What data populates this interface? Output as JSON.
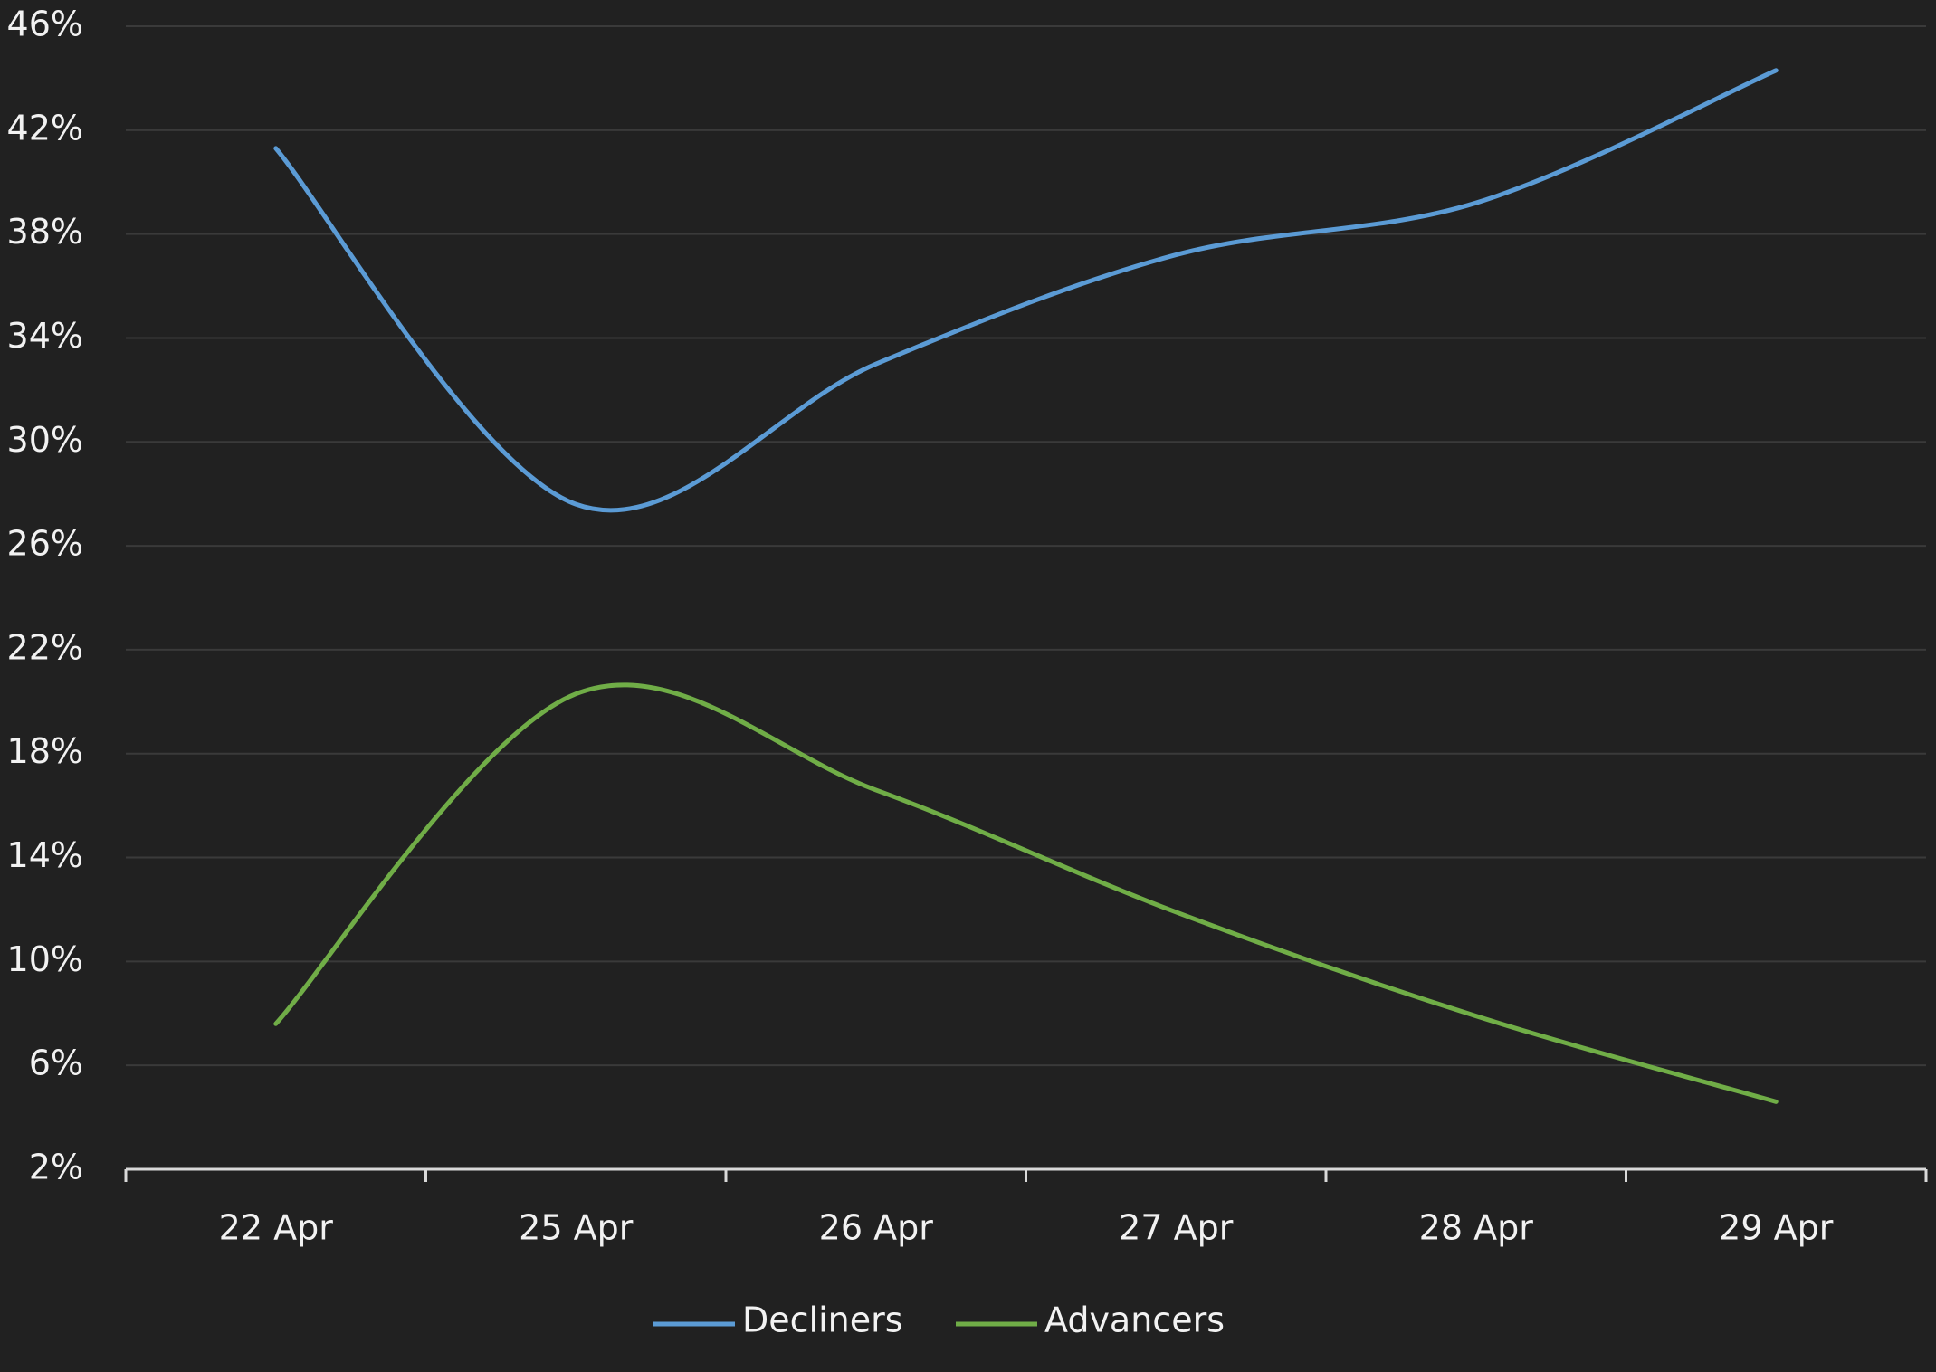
{
  "chart_data": {
    "type": "line",
    "categories": [
      "22 Apr",
      "25 Apr",
      "26 Apr",
      "27 Apr",
      "28 Apr",
      "29 Apr"
    ],
    "series": [
      {
        "name": "Decliners",
        "color": "#5b9bd5",
        "values": [
          41.3,
          27.6,
          33.0,
          37.2,
          39.2,
          44.3
        ]
      },
      {
        "name": "Advancers",
        "color": "#70ad47",
        "values": [
          7.6,
          20.3,
          16.6,
          11.9,
          7.9,
          4.6
        ]
      }
    ],
    "ylim": [
      2,
      46
    ],
    "yticks": [
      {
        "value": 2,
        "label": "2%"
      },
      {
        "value": 6,
        "label": "6%"
      },
      {
        "value": 10,
        "label": "10%"
      },
      {
        "value": 14,
        "label": "14%"
      },
      {
        "value": 18,
        "label": "18%"
      },
      {
        "value": 22,
        "label": "22%"
      },
      {
        "value": 26,
        "label": "26%"
      },
      {
        "value": 30,
        "label": "30%"
      },
      {
        "value": 34,
        "label": "34%"
      },
      {
        "value": 38,
        "label": "38%"
      },
      {
        "value": 42,
        "label": "42%"
      },
      {
        "value": 46,
        "label": "46%"
      }
    ],
    "grid": true,
    "smooth": true,
    "legend": "bottom"
  }
}
